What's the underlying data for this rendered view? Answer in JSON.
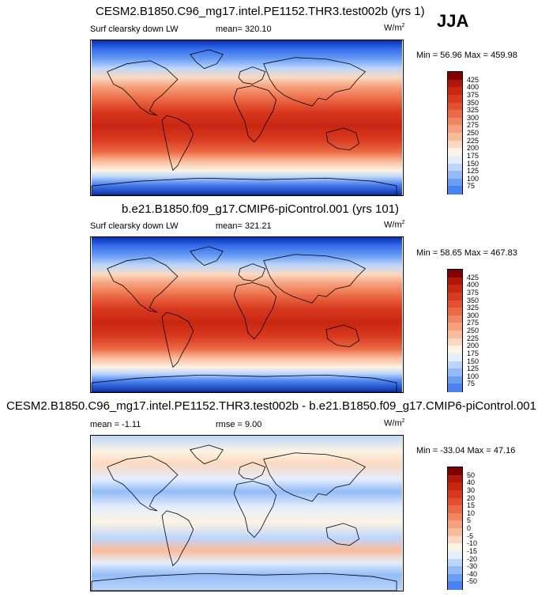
{
  "season": "JJA",
  "colors": {
    "abs": [
      "#06237b",
      "#0b2ea8",
      "#1d4fd8",
      "#2f68ea",
      "#4a82f0",
      "#6a9df4",
      "#93bcf7",
      "#bcd6fb",
      "#e4eefc",
      "#fdf3e3",
      "#fbd9c0",
      "#f9bc9b",
      "#f6a07d",
      "#f28561",
      "#ec6a45",
      "#e3502f",
      "#d8391f",
      "#c92612",
      "#b3150a",
      "#7f0000"
    ],
    "diff": [
      "#06237b",
      "#0b2ea8",
      "#1d4fd8",
      "#2f68ea",
      "#4a82f0",
      "#6a9df4",
      "#93bcf7",
      "#bcd6fb",
      "#e4eefc",
      "#fdf3e3",
      "#fbd9c0",
      "#f9bc9b",
      "#f6a07d",
      "#f28561",
      "#ec6a45",
      "#e3502f",
      "#d8391f",
      "#c92612",
      "#b3150a",
      "#7f0000"
    ]
  },
  "panels": [
    {
      "title": "CESM2.B1850.C96_mg17.intel.PE1152.THR3.test002b (yrs 1)",
      "variable": "Surf clearsky down LW",
      "mean": "mean= 320.10",
      "units": "W/m",
      "units_sup": "2",
      "minmax": "Min =  56.96 Max = 459.98",
      "ticks": [
        "425",
        "400",
        "375",
        "350",
        "325",
        "300",
        "275",
        "250",
        "225",
        "200",
        "175",
        "150",
        "125",
        "100",
        "75"
      ]
    },
    {
      "title": "b.e21.B1850.f09_g17.CMIP6-piControl.001 (yrs 101)",
      "variable": "Surf clearsky down LW",
      "mean": "mean= 321.21",
      "units": "W/m",
      "units_sup": "2",
      "minmax": "Min =  58.65 Max = 467.83",
      "ticks": [
        "425",
        "400",
        "375",
        "350",
        "325",
        "300",
        "275",
        "250",
        "225",
        "200",
        "175",
        "150",
        "125",
        "100",
        "75"
      ]
    },
    {
      "title": "CESM2.B1850.C96_mg17.intel.PE1152.THR3.test002b - b.e21.B1850.f09_g17.CMIP6-piControl.001",
      "variable": "mean =  -1.11",
      "mean": "rmse =   9.00",
      "units": "W/m",
      "units_sup": "2",
      "minmax": "Min = -33.04 Max =  47.16",
      "ticks": [
        "50",
        "40",
        "30",
        "20",
        "15",
        "10",
        "5",
        "0",
        "-5",
        "-10",
        "-15",
        "-20",
        "-30",
        "-40",
        "-50"
      ]
    }
  ],
  "chart_data": [
    {
      "type": "heatmap",
      "title": "CESM2.B1850.C96_mg17.intel.PE1152.THR3.test002b (yrs 1)",
      "variable": "Surf clearsky down LW",
      "units": "W/m2",
      "mean": 320.1,
      "min": 56.96,
      "max": 459.98,
      "contour_levels": [
        75,
        100,
        125,
        150,
        175,
        200,
        225,
        250,
        275,
        300,
        325,
        350,
        375,
        400,
        425
      ]
    },
    {
      "type": "heatmap",
      "title": "b.e21.B1850.f09_g17.CMIP6-piControl.001 (yrs 101)",
      "variable": "Surf clearsky down LW",
      "units": "W/m2",
      "mean": 321.21,
      "min": 58.65,
      "max": 467.83,
      "contour_levels": [
        75,
        100,
        125,
        150,
        175,
        200,
        225,
        250,
        275,
        300,
        325,
        350,
        375,
        400,
        425
      ]
    },
    {
      "type": "heatmap",
      "title": "CESM2.B1850.C96_mg17.intel.PE1152.THR3.test002b - b.e21.B1850.f09_g17.CMIP6-piControl.001",
      "units": "W/m2",
      "mean": -1.11,
      "rmse": 9.0,
      "min": -33.04,
      "max": 47.16,
      "contour_levels": [
        -50,
        -40,
        -30,
        -20,
        -15,
        -10,
        -5,
        0,
        5,
        10,
        15,
        20,
        30,
        40,
        50
      ]
    }
  ]
}
